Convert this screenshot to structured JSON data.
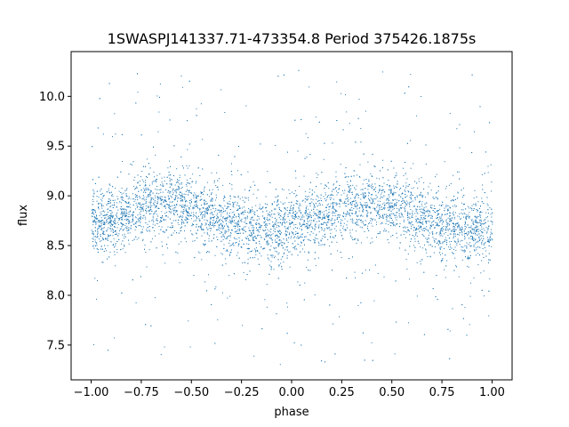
{
  "chart_data": {
    "type": "scatter",
    "title": "1SWASPJ141337.71-473354.8 Period 375426.1875s",
    "xlabel": "phase",
    "ylabel": "flux",
    "xlim": [
      -1.1,
      1.1
    ],
    "ylim": [
      7.15,
      10.45
    ],
    "grid": false,
    "legend": "none",
    "marker_color": "#1f77b4",
    "x_ticks": [
      {
        "value": -1.0,
        "label": "−1.00"
      },
      {
        "value": -0.75,
        "label": "−0.75"
      },
      {
        "value": -0.5,
        "label": "−0.50"
      },
      {
        "value": -0.25,
        "label": "−0.25"
      },
      {
        "value": 0.0,
        "label": "0.00"
      },
      {
        "value": 0.25,
        "label": "0.25"
      },
      {
        "value": 0.5,
        "label": "0.50"
      },
      {
        "value": 0.75,
        "label": "0.75"
      },
      {
        "value": 1.0,
        "label": "1.00"
      }
    ],
    "y_ticks": [
      {
        "value": 7.5,
        "label": "7.5"
      },
      {
        "value": 8.0,
        "label": "8.0"
      },
      {
        "value": 8.5,
        "label": "8.5"
      },
      {
        "value": 9.0,
        "label": "9.0"
      },
      {
        "value": 9.5,
        "label": "9.5"
      },
      {
        "value": 10.0,
        "label": "10.0"
      }
    ],
    "phase_range": [
      -1.0,
      1.0
    ],
    "flux_trend": {
      "phase": [
        -1.0,
        -0.9,
        -0.8,
        -0.7,
        -0.6,
        -0.5,
        -0.4,
        -0.3,
        -0.2,
        -0.1,
        0.0,
        0.1,
        0.2,
        0.3,
        0.4,
        0.5,
        0.6,
        0.7,
        0.8,
        0.9,
        1.0
      ],
      "flux": [
        8.72,
        8.76,
        8.85,
        8.93,
        8.95,
        8.88,
        8.8,
        8.72,
        8.68,
        8.65,
        8.7,
        8.76,
        8.85,
        8.93,
        8.95,
        8.88,
        8.8,
        8.72,
        8.68,
        8.65,
        8.7
      ]
    },
    "core_spread": 0.16,
    "outlier_range": [
      7.3,
      10.3
    ]
  }
}
